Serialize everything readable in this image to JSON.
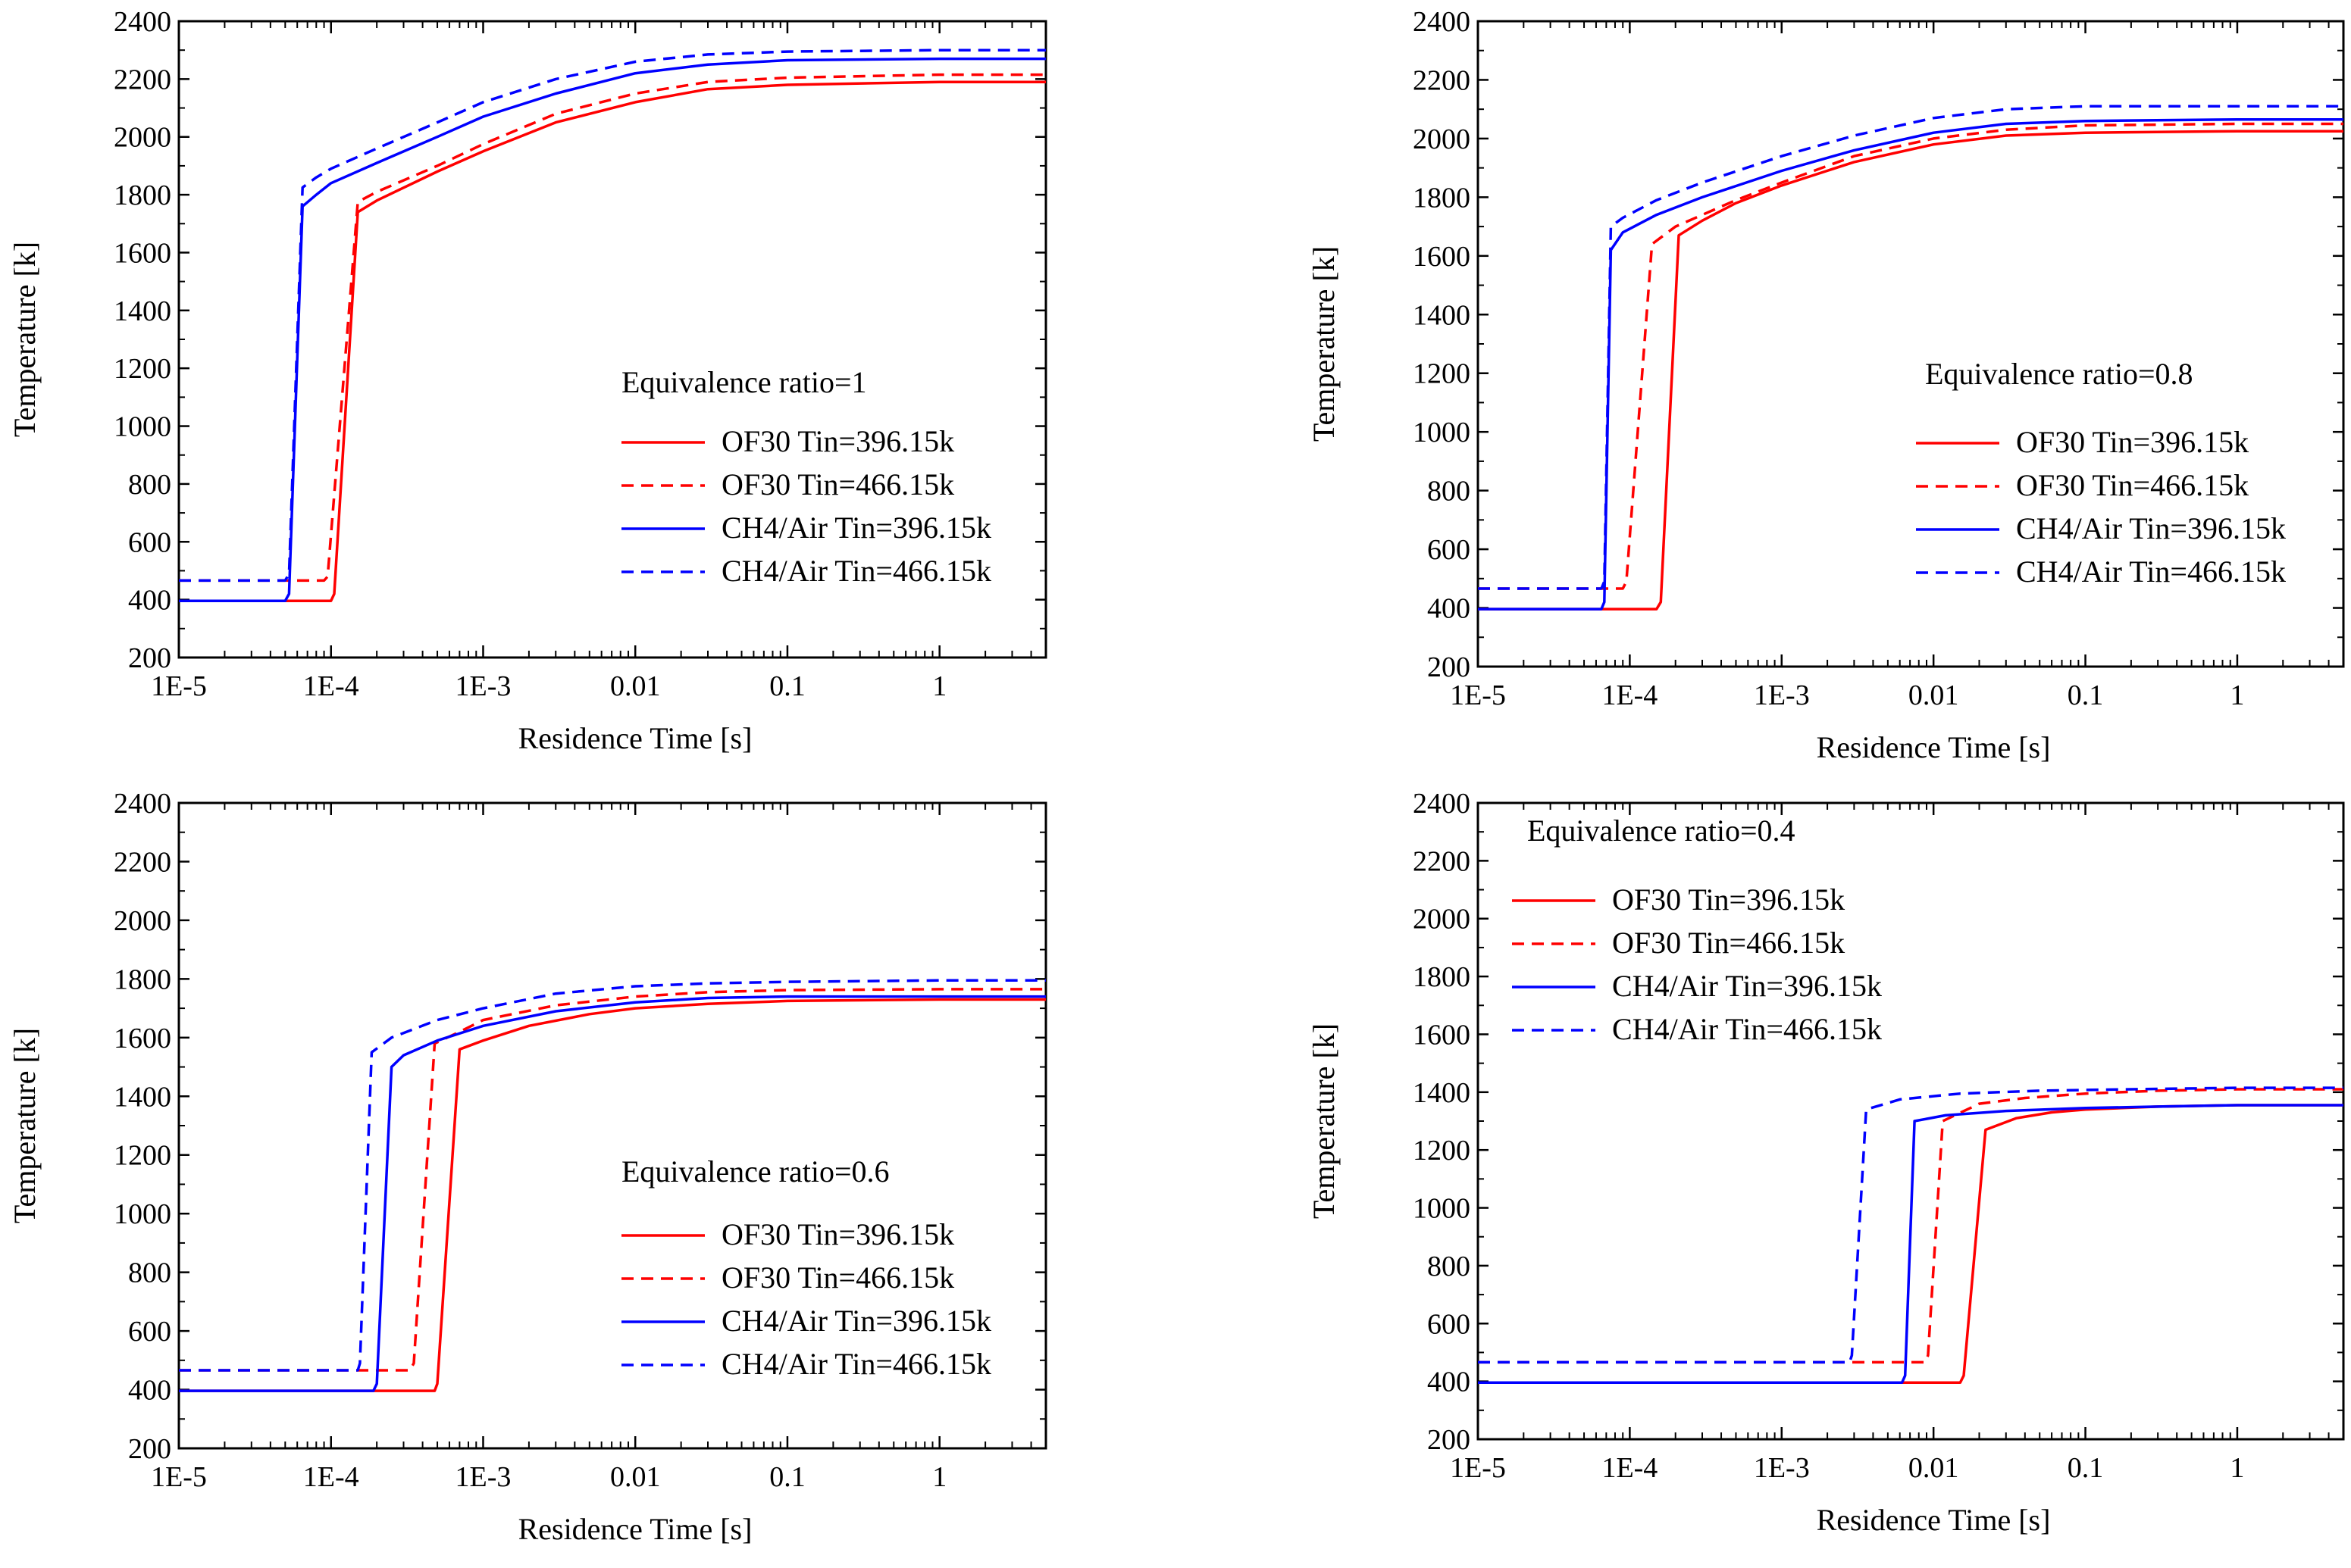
{
  "chart_data": [
    {
      "type": "line",
      "annotation": "Equivalence ratio=1",
      "legend_position": "right-middle",
      "xlabel": "Residence Time [s]",
      "ylabel": "Temperature [k]",
      "xscale": "log",
      "xlim": [
        1e-05,
        5
      ],
      "ylim": [
        200,
        2400
      ],
      "yticks": [
        200,
        400,
        600,
        800,
        1000,
        1200,
        1400,
        1600,
        1800,
        2000,
        2200,
        2400
      ],
      "xticks": [
        1e-05,
        0.0001,
        0.001,
        0.01,
        0.1,
        1
      ],
      "xtick_labels": [
        "1E-5",
        "1E-4",
        "1E-3",
        "0.01",
        "0.1",
        "1"
      ],
      "series": [
        {
          "name": "OF30 Tin=396.15k",
          "color": "#ff0000",
          "dash": "solid",
          "x": [
            1e-05,
            0.0001,
            0.000105,
            0.00015,
            0.0002,
            0.0005,
            0.001,
            0.003,
            0.01,
            0.03,
            0.1,
            1,
            5
          ],
          "y": [
            396,
            396,
            420,
            1740,
            1780,
            1880,
            1950,
            2050,
            2120,
            2165,
            2180,
            2190,
            2190
          ]
        },
        {
          "name": "OF30 Tin=466.15k",
          "color": "#ff0000",
          "dash": "dashed",
          "x": [
            1e-05,
            9e-05,
            9.5e-05,
            0.00015,
            0.0002,
            0.0005,
            0.001,
            0.003,
            0.01,
            0.03,
            0.1,
            1,
            5
          ],
          "y": [
            466,
            466,
            480,
            1775,
            1810,
            1900,
            1975,
            2080,
            2150,
            2190,
            2205,
            2215,
            2215
          ]
        },
        {
          "name": "CH4/Air Tin=396.15k",
          "color": "#0000ff",
          "dash": "solid",
          "x": [
            1e-05,
            5e-05,
            5.3e-05,
            6.5e-05,
            8e-05,
            0.0001,
            0.0002,
            0.0005,
            0.001,
            0.003,
            0.01,
            0.03,
            0.1,
            1,
            5
          ],
          "y": [
            396,
            396,
            420,
            1760,
            1800,
            1840,
            1910,
            2000,
            2070,
            2150,
            2220,
            2250,
            2265,
            2270,
            2270
          ]
        },
        {
          "name": "CH4/Air Tin=466.15k",
          "color": "#0000ff",
          "dash": "dashed",
          "x": [
            1e-05,
            5e-05,
            5.3e-05,
            6.5e-05,
            8e-05,
            0.0001,
            0.0002,
            0.0005,
            0.001,
            0.003,
            0.01,
            0.03,
            0.1,
            1,
            5
          ],
          "y": [
            466,
            466,
            490,
            1825,
            1860,
            1890,
            1960,
            2050,
            2120,
            2200,
            2260,
            2285,
            2295,
            2300,
            2300
          ]
        }
      ]
    },
    {
      "type": "line",
      "annotation": "Equivalence ratio=0.8",
      "legend_position": "right-middle",
      "xlabel": "Residence Time [s]",
      "ylabel": "Temperature [k]",
      "xscale": "log",
      "xlim": [
        1e-05,
        5
      ],
      "ylim": [
        200,
        2400
      ],
      "yticks": [
        200,
        400,
        600,
        800,
        1000,
        1200,
        1400,
        1600,
        1800,
        2000,
        2200,
        2400
      ],
      "xticks": [
        1e-05,
        0.0001,
        0.001,
        0.01,
        0.1,
        1
      ],
      "xtick_labels": [
        "1E-5",
        "1E-4",
        "1E-3",
        "0.01",
        "0.1",
        "1"
      ],
      "series": [
        {
          "name": "OF30 Tin=396.15k",
          "color": "#ff0000",
          "dash": "solid",
          "x": [
            1e-05,
            0.00015,
            0.00016,
            0.00021,
            0.0003,
            0.0005,
            0.001,
            0.003,
            0.01,
            0.03,
            0.1,
            1,
            5
          ],
          "y": [
            396,
            396,
            420,
            1670,
            1720,
            1780,
            1840,
            1920,
            1980,
            2010,
            2020,
            2025,
            2025
          ]
        },
        {
          "name": "OF30 Tin=466.15k",
          "color": "#ff0000",
          "dash": "dashed",
          "x": [
            1e-05,
            9e-05,
            9.5e-05,
            0.00014,
            0.0002,
            0.0005,
            0.001,
            0.003,
            0.01,
            0.03,
            0.1,
            1,
            5
          ],
          "y": [
            466,
            466,
            490,
            1640,
            1700,
            1790,
            1850,
            1940,
            2000,
            2030,
            2045,
            2050,
            2050
          ]
        },
        {
          "name": "CH4/Air Tin=396.15k",
          "color": "#0000ff",
          "dash": "solid",
          "x": [
            1e-05,
            6.5e-05,
            6.8e-05,
            7.5e-05,
            9e-05,
            0.00015,
            0.0003,
            0.001,
            0.003,
            0.01,
            0.03,
            0.1,
            1,
            5
          ],
          "y": [
            396,
            396,
            420,
            1620,
            1680,
            1740,
            1800,
            1890,
            1960,
            2020,
            2050,
            2060,
            2065,
            2065
          ]
        },
        {
          "name": "CH4/Air Tin=466.15k",
          "color": "#0000ff",
          "dash": "dashed",
          "x": [
            1e-05,
            6.5e-05,
            6.8e-05,
            7.5e-05,
            9e-05,
            0.00015,
            0.0003,
            0.001,
            0.003,
            0.01,
            0.03,
            0.1,
            1,
            5
          ],
          "y": [
            466,
            466,
            490,
            1700,
            1730,
            1790,
            1850,
            1940,
            2010,
            2070,
            2100,
            2110,
            2110,
            2110
          ]
        }
      ]
    },
    {
      "type": "line",
      "annotation": "Equivalence ratio=0.6",
      "legend_position": "right-middle",
      "xlabel": "Residence Time [s]",
      "ylabel": "Temperature [k]",
      "xscale": "log",
      "xlim": [
        1e-05,
        5
      ],
      "ylim": [
        200,
        2400
      ],
      "yticks": [
        200,
        400,
        600,
        800,
        1000,
        1200,
        1400,
        1600,
        1800,
        2000,
        2200,
        2400
      ],
      "xticks": [
        1e-05,
        0.0001,
        0.001,
        0.01,
        0.1,
        1
      ],
      "xtick_labels": [
        "1E-5",
        "1E-4",
        "1E-3",
        "0.01",
        "0.1",
        "1"
      ],
      "series": [
        {
          "name": "OF30 Tin=396.15k",
          "color": "#ff0000",
          "dash": "solid",
          "x": [
            1e-05,
            0.00048,
            0.0005,
            0.0007,
            0.001,
            0.002,
            0.005,
            0.01,
            0.03,
            0.1,
            1,
            5
          ],
          "y": [
            396,
            396,
            420,
            1560,
            1590,
            1640,
            1680,
            1700,
            1715,
            1725,
            1730,
            1730
          ]
        },
        {
          "name": "OF30 Tin=466.15k",
          "color": "#ff0000",
          "dash": "dashed",
          "x": [
            1e-05,
            0.00033,
            0.00035,
            0.00048,
            0.0007,
            0.001,
            0.003,
            0.01,
            0.03,
            0.1,
            1,
            5
          ],
          "y": [
            466,
            466,
            490,
            1580,
            1620,
            1660,
            1710,
            1740,
            1755,
            1762,
            1765,
            1765
          ]
        },
        {
          "name": "CH4/Air Tin=396.15k",
          "color": "#0000ff",
          "dash": "solid",
          "x": [
            1e-05,
            0.00019,
            0.0002,
            0.00025,
            0.0003,
            0.0005,
            0.001,
            0.003,
            0.01,
            0.03,
            0.1,
            1,
            5
          ],
          "y": [
            396,
            396,
            420,
            1500,
            1540,
            1590,
            1640,
            1690,
            1720,
            1735,
            1740,
            1740,
            1740
          ]
        },
        {
          "name": "CH4/Air Tin=466.15k",
          "color": "#0000ff",
          "dash": "dashed",
          "x": [
            1e-05,
            0.00015,
            0.000155,
            0.000185,
            0.00025,
            0.0005,
            0.001,
            0.003,
            0.01,
            0.03,
            0.1,
            1,
            5
          ],
          "y": [
            466,
            466,
            490,
            1550,
            1600,
            1660,
            1700,
            1750,
            1775,
            1785,
            1790,
            1795,
            1795
          ]
        }
      ]
    },
    {
      "type": "line",
      "annotation": "Equivalence ratio=0.4",
      "legend_position": "top-left",
      "xlabel": "Residence Time [s]",
      "ylabel": "Temperature [k]",
      "xscale": "log",
      "xlim": [
        1e-05,
        5
      ],
      "ylim": [
        200,
        2400
      ],
      "yticks": [
        200,
        400,
        600,
        800,
        1000,
        1200,
        1400,
        1600,
        1800,
        2000,
        2200,
        2400
      ],
      "xticks": [
        1e-05,
        0.0001,
        0.001,
        0.01,
        0.1,
        1
      ],
      "xtick_labels": [
        "1E-5",
        "1E-4",
        "1E-3",
        "0.01",
        "0.1",
        "1"
      ],
      "series": [
        {
          "name": "OF30 Tin=396.15k",
          "color": "#ff0000",
          "dash": "solid",
          "x": [
            1e-05,
            0.015,
            0.0158,
            0.022,
            0.035,
            0.06,
            0.1,
            0.3,
            1,
            5
          ],
          "y": [
            396,
            396,
            420,
            1270,
            1310,
            1330,
            1340,
            1350,
            1355,
            1355
          ]
        },
        {
          "name": "OF30 Tin=466.15k",
          "color": "#ff0000",
          "dash": "dashed",
          "x": [
            1e-05,
            0.0088,
            0.0092,
            0.0115,
            0.02,
            0.04,
            0.1,
            0.3,
            1,
            5
          ],
          "y": [
            466,
            466,
            490,
            1300,
            1360,
            1380,
            1395,
            1405,
            1410,
            1410
          ]
        },
        {
          "name": "CH4/Air Tin=396.15k",
          "color": "#0000ff",
          "dash": "solid",
          "x": [
            1e-05,
            0.0062,
            0.0065,
            0.0075,
            0.012,
            0.03,
            0.1,
            0.3,
            1,
            5
          ],
          "y": [
            396,
            396,
            420,
            1300,
            1320,
            1335,
            1345,
            1350,
            1355,
            1355
          ]
        },
        {
          "name": "CH4/Air Tin=466.15k",
          "color": "#0000ff",
          "dash": "dashed",
          "x": [
            1e-05,
            0.0028,
            0.0029,
            0.0036,
            0.006,
            0.015,
            0.05,
            0.2,
            1,
            5
          ],
          "y": [
            466,
            466,
            490,
            1340,
            1375,
            1395,
            1405,
            1410,
            1415,
            1415
          ]
        }
      ]
    }
  ]
}
